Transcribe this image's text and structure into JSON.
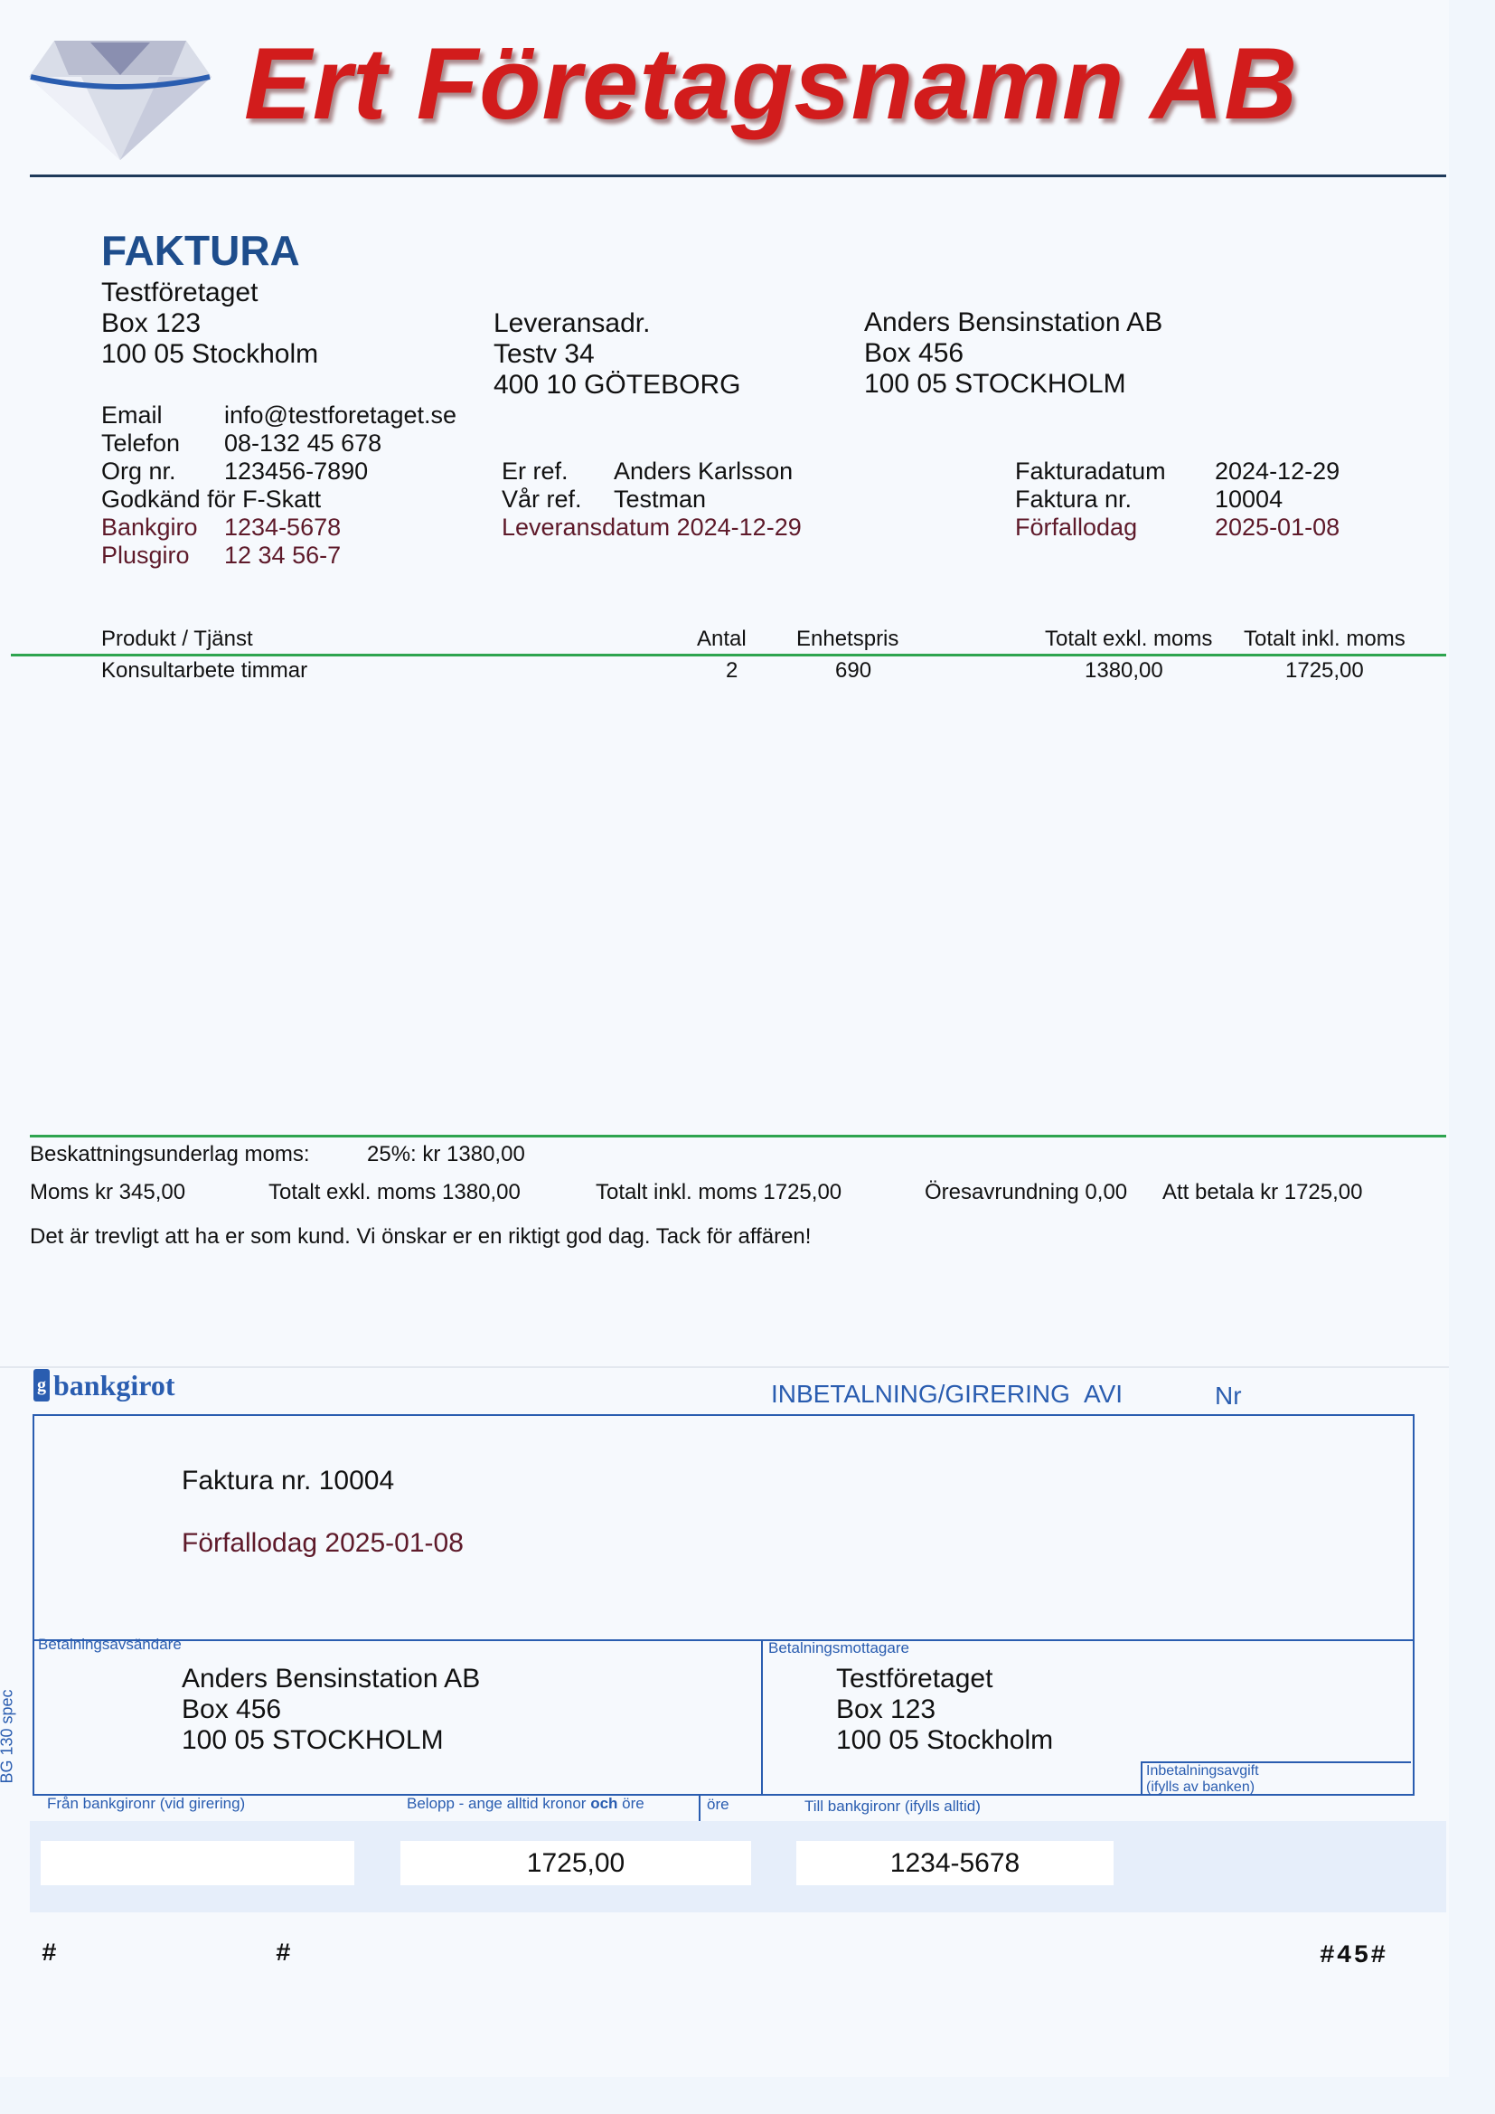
{
  "header": {
    "company_name": "Ert Företagsnamn AB",
    "logo": "diamond-icon"
  },
  "doc_title": "FAKTURA",
  "sender": {
    "name": "Testföretaget",
    "address1": "Box 123",
    "address2": "100 05 Stockholm"
  },
  "delivery": {
    "label": "Leveransadr.",
    "address1": "Testv 34",
    "address2": "400 10 GÖTEBORG"
  },
  "recipient": {
    "name": "Anders Bensinstation AB",
    "address1": "Box 456",
    "address2": "100 05 STOCKHOLM"
  },
  "contact": [
    {
      "label": "Email",
      "value": "info@testforetaget.se"
    },
    {
      "label": "Telefon",
      "value": "08-132 45 678"
    },
    {
      "label": "Org nr.",
      "value": "123456-7890"
    }
  ],
  "ftax": "Godkänd för F-Skatt",
  "giro": [
    {
      "label": "Bankgiro",
      "value": "1234-5678"
    },
    {
      "label": "Plusgiro",
      "value": "12 34 56-7"
    }
  ],
  "refs": {
    "er_label": "Er ref.",
    "er_value": "Anders Karlsson",
    "var_label": "Vår ref.",
    "var_value": "Testman",
    "delivery_date": "Leveransdatum 2024-12-29"
  },
  "invoice_meta": [
    {
      "label": "Fakturadatum",
      "value": "2024-12-29"
    },
    {
      "label": "Faktura nr.",
      "value": "10004"
    },
    {
      "label": "Förfallodag",
      "value": "2025-01-08"
    }
  ],
  "table": {
    "headers": [
      "Produkt / Tjänst",
      "Antal",
      "Enhetspris",
      "Totalt exkl. moms",
      "Totalt inkl. moms"
    ],
    "rows": [
      [
        "Konsultarbete timmar",
        "2",
        "690",
        "1380,00",
        "1725,00"
      ]
    ]
  },
  "summary": {
    "tax_base_label": "Beskattningsunderlag moms:",
    "tax_base_value": "25%: kr 1380,00",
    "moms": "Moms kr 345,00",
    "total_excl": "Totalt exkl. moms 1380,00",
    "total_incl": "Totalt inkl. moms 1725,00",
    "rounding": "Öresavrundning 0,00",
    "to_pay": "Att betala kr 1725,00",
    "message": "Det är trevligt att ha er som kund. Vi önskar er en riktigt god dag. Tack för affären!"
  },
  "giro_slip": {
    "logo_text": "bankgirot",
    "form_title": "INBETALNING/GIRERING",
    "avi": "AVI",
    "nr": "Nr",
    "invoice_no": "Faktura nr. 10004",
    "due": "Förfallodag 2025-01-08",
    "payer_label": "Betalningsavsändare",
    "payer": [
      "Anders Bensinstation AB",
      "Box 456",
      "100 05 STOCKHOLM"
    ],
    "payee_label": "Betalningsmottagare",
    "payee": [
      "Testföretaget",
      "Box 123",
      "100 05 Stockholm"
    ],
    "fee_label1": "Inbetalningsavgift",
    "fee_label2": "(ifylls av banken)",
    "side_label": "BG 130 spec",
    "from_label": "Från bankgironr (vid girering)",
    "amount_label_a": "Belopp - ange alltid kronor ",
    "amount_label_b": "och",
    "amount_label_c": " öre",
    "ore_label": "öre",
    "to_label": "Till bankgironr (ifylls alltid)",
    "amount": "1725,00",
    "to_bankgiro": "1234-5678",
    "ocr1": "#",
    "ocr2": "#",
    "ocr3": "#45#"
  },
  "colors": {
    "brand_red": "#d21c1c",
    "title_blue": "#1e4d8c",
    "maroon": "#5e1a2a",
    "bank_blue": "#2a5db0",
    "rule_green": "#2ea44f"
  }
}
